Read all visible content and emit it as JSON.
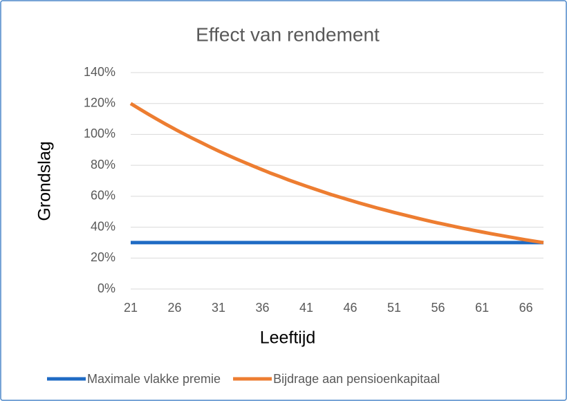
{
  "chart_data": {
    "type": "line",
    "title": "Effect van rendement",
    "x_label": "Leeftijd",
    "y_label": "Grondslag",
    "x": [
      21,
      22,
      23,
      24,
      25,
      26,
      27,
      28,
      29,
      30,
      31,
      32,
      33,
      34,
      35,
      36,
      37,
      38,
      39,
      40,
      41,
      42,
      43,
      44,
      45,
      46,
      47,
      48,
      49,
      50,
      51,
      52,
      53,
      54,
      55,
      56,
      57,
      58,
      59,
      60,
      61,
      62,
      63,
      64,
      65,
      66,
      67,
      68
    ],
    "series": [
      {
        "name": "Maximale vlakke premie",
        "color": "#1f6bc4",
        "values": [
          30,
          30,
          30,
          30,
          30,
          30,
          30,
          30,
          30,
          30,
          30,
          30,
          30,
          30,
          30,
          30,
          30,
          30,
          30,
          30,
          30,
          30,
          30,
          30,
          30,
          30,
          30,
          30,
          30,
          30,
          30,
          30,
          30,
          30,
          30,
          30,
          30,
          30,
          30,
          30,
          30,
          30,
          30,
          30,
          30,
          30,
          30,
          30
        ]
      },
      {
        "name": "Bijdrage aan pensioenkapitaal",
        "color": "#ed7d31",
        "values": [
          120.0,
          116.5,
          113.1,
          109.8,
          106.6,
          103.5,
          100.5,
          97.6,
          94.8,
          92.0,
          89.3,
          86.7,
          84.2,
          81.8,
          79.4,
          77.1,
          74.8,
          72.7,
          70.5,
          68.5,
          66.5,
          64.6,
          62.7,
          60.8,
          59.1,
          57.4,
          55.7,
          54.1,
          52.5,
          51.0,
          49.5,
          48.1,
          46.7,
          45.3,
          44.0,
          42.7,
          41.5,
          40.3,
          39.1,
          38.0,
          36.9,
          35.8,
          34.8,
          33.8,
          32.8,
          31.8,
          30.9,
          30.0
        ]
      }
    ],
    "xlim": [
      21,
      68
    ],
    "xticks": [
      21,
      26,
      31,
      36,
      41,
      46,
      51,
      56,
      61,
      66
    ],
    "ylim": [
      0,
      140
    ],
    "yticks": [
      {
        "value": 0,
        "label": "0%"
      },
      {
        "value": 20,
        "label": "20%"
      },
      {
        "value": 40,
        "label": "40%"
      },
      {
        "value": 60,
        "label": "60%"
      },
      {
        "value": 80,
        "label": "80%"
      },
      {
        "value": 100,
        "label": "100%"
      },
      {
        "value": 120,
        "label": "120%"
      },
      {
        "value": 140,
        "label": "140%"
      }
    ],
    "grid": true,
    "legend": "bottom"
  }
}
